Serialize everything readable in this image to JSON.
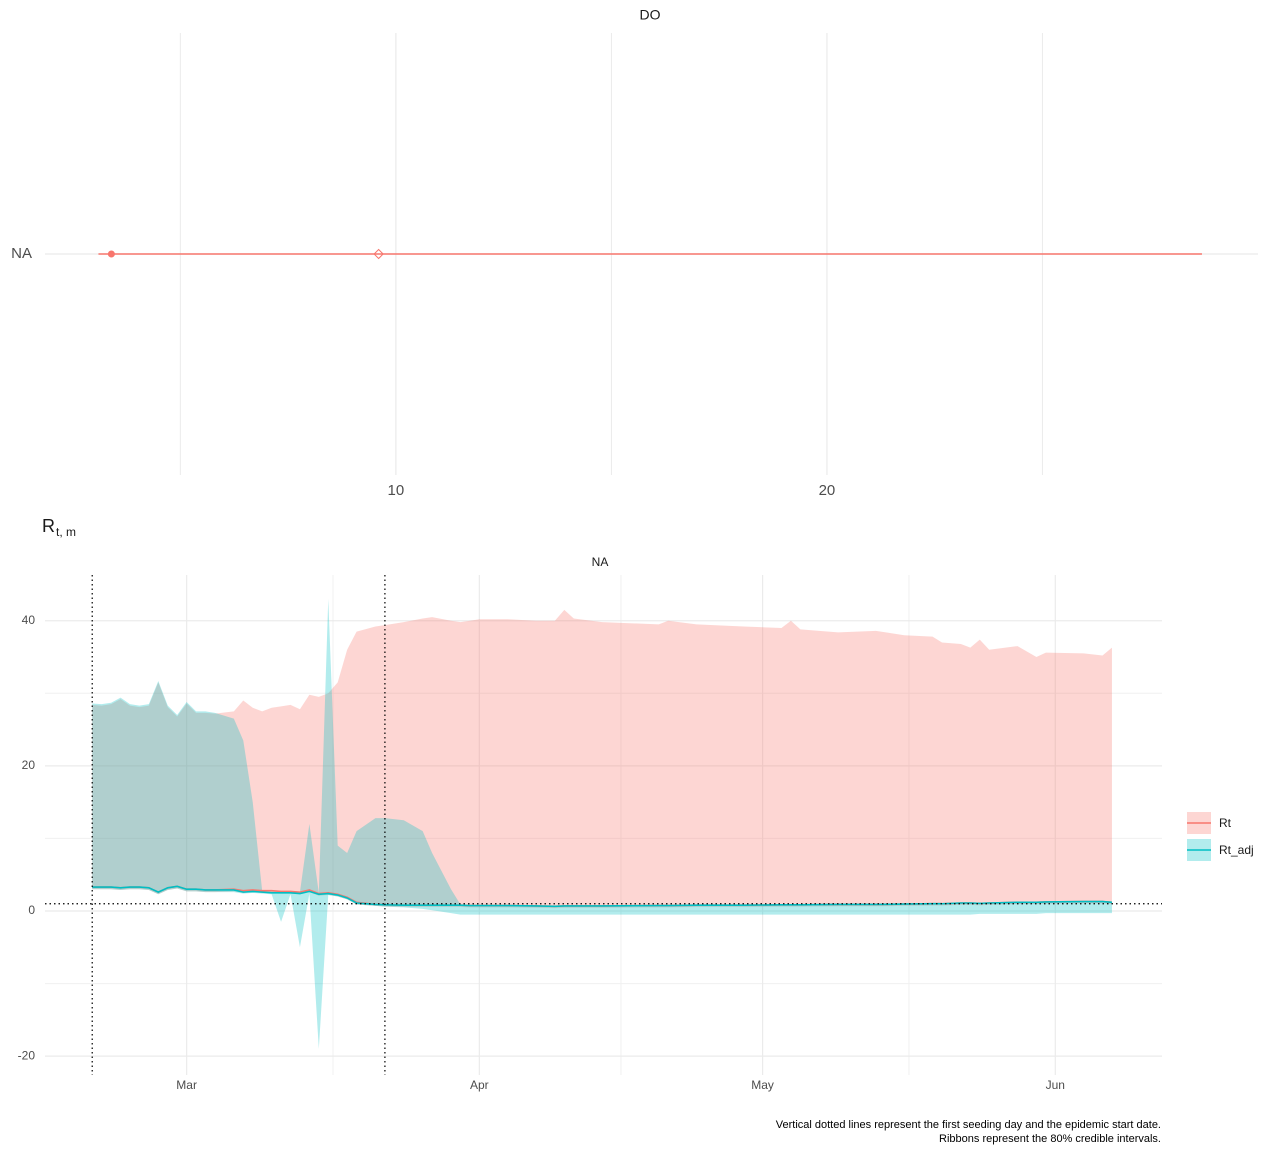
{
  "chart_data": [
    {
      "type": "interval",
      "title": "DO",
      "categories": [
        "NA"
      ],
      "color": "#F8766D",
      "interval": [
        3.1,
        28.7
      ],
      "points": [
        3.4
      ],
      "open_points": [
        9.6
      ],
      "xlim": [
        1.86,
        30
      ],
      "xticks": [
        10,
        20
      ],
      "xminor": [
        5,
        15,
        25
      ],
      "grid": true
    },
    {
      "type": "ribbon-line",
      "title": "NA",
      "ylabel": "R",
      "ylabel_subscript": "t, m",
      "x": [
        -10,
        -9,
        -8,
        -7,
        -6,
        -5,
        -4,
        -3,
        -2,
        -1,
        0,
        1,
        2,
        3,
        5,
        6,
        7,
        8,
        9,
        10,
        11,
        12,
        13,
        14,
        15,
        16,
        17,
        18,
        20,
        21,
        23,
        25,
        26,
        28,
        29,
        30,
        31,
        34,
        37,
        39,
        40,
        41,
        44,
        50,
        51,
        54,
        59,
        63,
        64,
        65,
        69,
        73,
        76,
        79,
        80,
        82,
        83,
        84,
        85,
        88,
        90,
        91,
        95,
        97,
        98
      ],
      "xlim": [
        -15,
        103.3
      ],
      "xticks": [
        {
          "value": 0,
          "label": "Mar"
        },
        {
          "value": 31,
          "label": "Apr"
        },
        {
          "value": 61,
          "label": "May"
        },
        {
          "value": 92,
          "label": "Jun"
        }
      ],
      "xminor": [
        15.5,
        46,
        76.5
      ],
      "ylim": [
        -22.6,
        46.3
      ],
      "yticks": [
        -20,
        0,
        20,
        40
      ],
      "yminor": [
        -10,
        10,
        30
      ],
      "vlines": [
        -10,
        21
      ],
      "hline": 1,
      "ribbon_alpha": 0.3,
      "grid": true,
      "legend": "right",
      "series": [
        {
          "name": "Rt",
          "color": "#F8766D",
          "values": [
            3.3,
            3.3,
            3.3,
            3.2,
            3.3,
            3.3,
            3.2,
            2.6,
            3.2,
            3.4,
            3.0,
            3.0,
            2.9,
            2.9,
            3.0,
            2.8,
            2.9,
            2.8,
            2.8,
            2.7,
            2.7,
            2.6,
            2.9,
            2.4,
            2.5,
            2.3,
            1.9,
            1.2,
            0.9,
            0.85,
            0.8,
            0.8,
            0.8,
            0.8,
            0.8,
            0.75,
            0.75,
            0.75,
            0.7,
            0.65,
            0.7,
            0.7,
            0.7,
            0.75,
            0.75,
            0.8,
            0.8,
            0.85,
            0.85,
            0.85,
            0.9,
            0.9,
            0.95,
            1.0,
            1.0,
            1.1,
            1.1,
            1.05,
            1.1,
            1.2,
            1.2,
            1.25,
            1.3,
            1.3,
            1.2
          ],
          "lower": [
            3.0,
            3.0,
            3.0,
            2.9,
            3.0,
            3.0,
            2.9,
            2.3,
            2.9,
            3.1,
            2.7,
            2.7,
            2.6,
            2.6,
            2.7,
            2.5,
            2.6,
            2.5,
            2.5,
            2.4,
            2.4,
            2.3,
            2.6,
            2.1,
            2.2,
            2.0,
            1.6,
            0.9,
            0.7,
            0.6,
            0.55,
            0.55,
            0.55,
            0.55,
            0.55,
            0.5,
            0.5,
            0.5,
            0.45,
            0.4,
            0.45,
            0.45,
            0.45,
            0.5,
            0.5,
            0.55,
            0.55,
            0.6,
            0.6,
            0.6,
            0.65,
            0.65,
            0.7,
            0.75,
            0.75,
            0.85,
            0.85,
            0.8,
            0.85,
            0.95,
            0.95,
            1.0,
            1.05,
            1.05,
            0.95
          ],
          "upper": [
            28.4,
            28.3,
            28.5,
            29.2,
            28.3,
            28.1,
            28.3,
            31.5,
            28.1,
            26.8,
            28.6,
            27.3,
            27.3,
            27.2,
            27.5,
            29,
            28,
            27.5,
            28,
            28.2,
            28.4,
            27.8,
            29.8,
            29.5,
            30,
            31.5,
            36,
            38.5,
            39.2,
            39.4,
            39.8,
            40.3,
            40.5,
            40,
            39.8,
            40,
            40.2,
            40.2,
            40,
            40,
            41.5,
            40.3,
            39.8,
            39.5,
            40,
            39.5,
            39.2,
            39,
            40,
            38.8,
            38.4,
            38.6,
            38,
            37.8,
            37,
            36.8,
            36.3,
            37.4,
            36,
            36.5,
            35,
            35.6,
            35.5,
            35.2,
            36.3
          ]
        },
        {
          "name": "Rt_adj",
          "color": "#00BFC4",
          "values": [
            3.3,
            3.3,
            3.3,
            3.2,
            3.3,
            3.3,
            3.2,
            2.6,
            3.2,
            3.4,
            3.0,
            3.0,
            2.9,
            2.9,
            2.9,
            2.6,
            2.7,
            2.6,
            2.5,
            2.5,
            2.5,
            2.4,
            2.7,
            2.3,
            2.4,
            2.2,
            1.8,
            1.1,
            0.9,
            0.85,
            0.8,
            0.8,
            0.8,
            0.8,
            0.8,
            0.75,
            0.75,
            0.75,
            0.7,
            0.65,
            0.7,
            0.7,
            0.7,
            0.75,
            0.75,
            0.8,
            0.8,
            0.85,
            0.85,
            0.85,
            0.9,
            0.9,
            0.95,
            1.0,
            1.0,
            1.1,
            1.1,
            1.05,
            1.1,
            1.2,
            1.2,
            1.25,
            1.3,
            1.3,
            1.2
          ],
          "lower": [
            3.0,
            3.0,
            3.0,
            2.9,
            3.0,
            3.0,
            2.9,
            2.3,
            2.9,
            3.1,
            2.7,
            2.7,
            2.6,
            2.6,
            2.6,
            2.4,
            2.5,
            2.4,
            2.3,
            -1.5,
            2.3,
            -5,
            2.4,
            -19,
            2.2,
            2.0,
            1.6,
            0.9,
            0.7,
            0.6,
            0.5,
            0.3,
            0.1,
            -0.3,
            -0.5,
            -0.5,
            -0.5,
            -0.5,
            -0.5,
            -0.5,
            -0.5,
            -0.5,
            -0.5,
            -0.5,
            -0.5,
            -0.5,
            -0.5,
            -0.5,
            -0.5,
            -0.5,
            -0.5,
            -0.5,
            -0.5,
            -0.5,
            -0.5,
            -0.5,
            -0.5,
            -0.4,
            -0.4,
            -0.4,
            -0.4,
            -0.3,
            -0.3,
            -0.3,
            -0.3
          ],
          "upper": [
            28.6,
            28.5,
            28.7,
            29.4,
            28.5,
            28.3,
            28.5,
            31.7,
            28.3,
            27.0,
            28.8,
            27.5,
            27.5,
            27.3,
            26.5,
            23.5,
            15,
            2.8,
            2.7,
            2.7,
            2.6,
            2.6,
            12,
            2.5,
            43,
            9,
            8,
            11,
            12.8,
            12.8,
            12.5,
            11,
            8,
            3,
            0.9,
            0.8,
            0.8,
            0.8,
            0.8,
            0.75,
            0.8,
            0.8,
            0.8,
            0.85,
            0.85,
            0.9,
            0.9,
            0.95,
            0.95,
            0.95,
            1.0,
            1.0,
            1.05,
            1.1,
            1.1,
            1.2,
            1.2,
            1.15,
            1.2,
            1.3,
            1.3,
            1.35,
            1.4,
            1.4,
            1.3
          ]
        }
      ],
      "caption": [
        "Vertical dotted lines represent the first seeding day and the epidemic start date.",
        "Ribbons represent the 80% credible intervals."
      ]
    }
  ]
}
